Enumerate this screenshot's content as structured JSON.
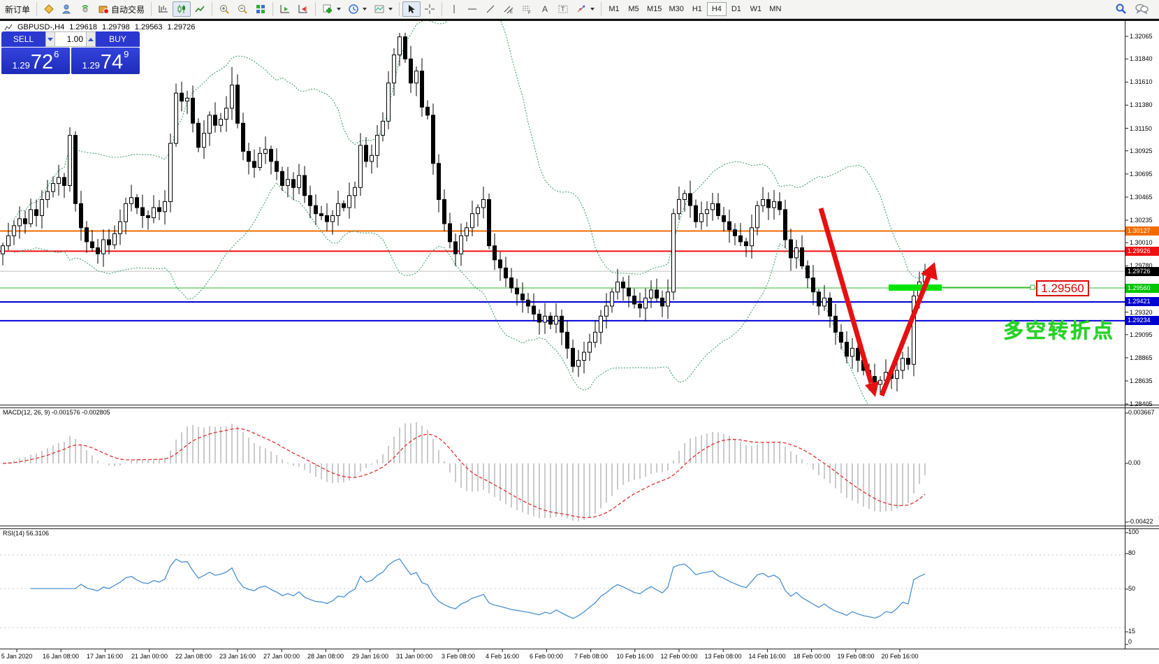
{
  "toolbar": {
    "new_order_label": "新订单",
    "auto_trading_label": "自动交易",
    "timeframes": [
      "M1",
      "M5",
      "M15",
      "M30",
      "H1",
      "H4",
      "D1",
      "W1",
      "MN"
    ],
    "active_timeframe": "H4"
  },
  "legend": {
    "symbol_period": "GBPUSD-,H4",
    "open": "1.29618",
    "high": "1.29798",
    "low": "1.29563",
    "close": "1.29726"
  },
  "trade_panel": {
    "sell_label": "SELL",
    "buy_label": "BUY",
    "volume": "1.00",
    "sell_price_small": "1.29",
    "sell_price_big": "72",
    "sell_price_sup": "6",
    "buy_price_small": "1.29",
    "buy_price_big": "74",
    "buy_price_sup": "9"
  },
  "price_axis": {
    "ticks": [
      "1.32065",
      "1.31840",
      "1.31610",
      "1.31380",
      "1.31150",
      "1.30925",
      "1.30695",
      "1.30465",
      "1.30235",
      "1.30010",
      "1.29780",
      "1.29320",
      "1.29095",
      "1.28865",
      "1.28635",
      "1.28405"
    ],
    "tags": [
      {
        "text": "1.30127",
        "price": 1.30127,
        "bg": "#f26b00"
      },
      {
        "text": "1.29926",
        "price": 1.29926,
        "bg": "#ee1111"
      },
      {
        "text": "1.29726",
        "price": 1.29726,
        "bg": "#000000"
      },
      {
        "text": "1.29560",
        "price": 1.2956,
        "bg": "#00c400"
      },
      {
        "text": "1.29421",
        "price": 1.29421,
        "bg": "#0000d0"
      },
      {
        "text": "1.29234",
        "price": 1.29234,
        "bg": "#0000d0"
      }
    ]
  },
  "macd_panel": {
    "name": "MACD(12, 26, 9)",
    "values": "-0.001576 -0.002805",
    "axis_labels": [
      "0.003667",
      "0.00",
      "-0.00422"
    ]
  },
  "rsi_panel": {
    "name": "RSI(14)",
    "value": "56.3106",
    "axis_labels": [
      "100",
      "80",
      "50",
      "15",
      "0"
    ]
  },
  "time_axis": {
    "labels": [
      "5 Jan 2020",
      "16 Jan 08:00",
      "17 Jan 16:00",
      "21 Jan 00:00",
      "22 Jan 08:00",
      "23 Jan 16:00",
      "27 Jan 00:00",
      "28 Jan 08:00",
      "29 Jan 16:00",
      "31 Jan 00:00",
      "3 Feb 08:00",
      "4 Feb 16:00",
      "6 Feb 00:00",
      "7 Feb 08:00",
      "10 Feb 16:00",
      "12 Feb 00:00",
      "13 Feb 08:00",
      "14 Feb 16:00",
      "18 Feb 00:00",
      "19 Feb 08:00",
      "20 Feb 16:00"
    ]
  },
  "annotations": {
    "price_box_text": "1.29560",
    "cn_text": "多空转折点"
  },
  "chart_data": {
    "type": "candlestick",
    "symbol": "GBPUSD-",
    "timeframe": "H4",
    "last_bar": {
      "open": 1.29618,
      "high": 1.29798,
      "low": 1.29563,
      "close": 1.29726
    },
    "current_price": 1.29726,
    "y_axis_ticks": [
      1.32065,
      1.3184,
      1.3161,
      1.3138,
      1.3115,
      1.30925,
      1.30695,
      1.30465,
      1.30235,
      1.3001,
      1.2978,
      1.2932,
      1.29095,
      1.28865,
      1.28635,
      1.28405
    ],
    "horizontal_lines": [
      {
        "price": 1.30127,
        "color": "#f26b00",
        "width": 2
      },
      {
        "price": 1.29926,
        "color": "#ee1111",
        "width": 2
      },
      {
        "price": 1.2956,
        "color": "#2dbb2d",
        "width": 1
      },
      {
        "price": 1.29421,
        "color": "#0000d8",
        "width": 2
      },
      {
        "price": 1.29234,
        "color": "#0000d8",
        "width": 2
      }
    ],
    "first_open": 1.299,
    "closes": [
      1.2998,
      1.3008,
      1.3018,
      1.3025,
      1.302,
      1.3034,
      1.3028,
      1.3044,
      1.3052,
      1.306,
      1.3066,
      1.3058,
      1.3108,
      1.304,
      1.3016,
      1.3002,
      1.2996,
      1.299,
      1.3004,
      1.2999,
      1.301,
      1.3022,
      1.304,
      1.3046,
      1.3036,
      1.3028,
      1.3026,
      1.3036,
      1.3032,
      1.3042,
      1.31,
      1.315,
      1.3142,
      1.3145,
      1.312,
      1.3096,
      1.311,
      1.3128,
      1.3118,
      1.3124,
      1.3135,
      1.3158,
      1.312,
      1.3092,
      1.3082,
      1.3076,
      1.309,
      1.3094,
      1.3082,
      1.3072,
      1.3058,
      1.3064,
      1.3056,
      1.3068,
      1.3048,
      1.3038,
      1.303,
      1.3028,
      1.3022,
      1.3028,
      1.304,
      1.3036,
      1.3048,
      1.3056,
      1.3098,
      1.3082,
      1.3088,
      1.3108,
      1.3122,
      1.316,
      1.3188,
      1.3206,
      1.3184,
      1.316,
      1.3172,
      1.3136,
      1.3128,
      1.308,
      1.3044,
      1.302,
      1.3002,
      1.299,
      1.3008,
      1.3016,
      1.303,
      1.3036,
      1.3044,
      1.2998,
      1.2984,
      1.2976,
      1.2966,
      1.2956,
      1.295,
      1.2944,
      1.2938,
      1.293,
      1.2922,
      1.2928,
      1.292,
      1.2928,
      1.2912,
      1.2896,
      1.2878,
      1.2884,
      1.2892,
      1.2902,
      1.2912,
      1.2928,
      1.2938,
      1.2952,
      1.2962,
      1.2956,
      1.2948,
      1.294,
      1.2936,
      1.2946,
      1.2954,
      1.2946,
      1.2938,
      1.2952,
      1.303,
      1.3044,
      1.305,
      1.3038,
      1.3022,
      1.303,
      1.3034,
      1.304,
      1.3028,
      1.3022,
      1.3014,
      1.3008,
      1.3002,
      1.2998,
      1.3016,
      1.3038,
      1.3044,
      1.3036,
      1.3042,
      1.3034,
      1.3004,
      1.2986,
      1.2996,
      1.2978,
      1.2966,
      1.2952,
      1.2938,
      1.2946,
      1.2928,
      1.2912,
      1.2902,
      1.2888,
      1.2896,
      1.2884,
      1.2874,
      1.2868,
      1.286,
      1.2864,
      1.2872,
      1.2866,
      1.2874,
      1.2886,
      1.288,
      1.2948,
      1.2962,
      1.29726
    ],
    "wick_overrides": {
      "12": {
        "h": 1.3116
      },
      "41": {
        "h": 1.3176
      },
      "71": {
        "h": 1.321
      },
      "87": {
        "h": 1.305
      },
      "102": {
        "l": 1.2872
      },
      "155": {
        "l": 1.2854
      },
      "156": {
        "l": 1.285
      },
      "165": {
        "h": 1.298
      }
    },
    "indicators": {
      "bollinger": {
        "period": 20,
        "deviation": 2,
        "color": "#2f9f5f"
      },
      "macd": {
        "label": "MACD(12, 26, 9)",
        "current_values": [
          -0.001576,
          -0.002805
        ],
        "axis": [
          0.003667,
          0.0,
          -0.00422
        ],
        "histogram_color": "#b9b9b9",
        "signal_color": "#e03030"
      },
      "rsi": {
        "label": "RSI(14)",
        "current_value": 56.3106,
        "levels": [
          80,
          50,
          15
        ],
        "range": [
          0,
          100
        ],
        "color": "#4a90d2"
      }
    }
  }
}
